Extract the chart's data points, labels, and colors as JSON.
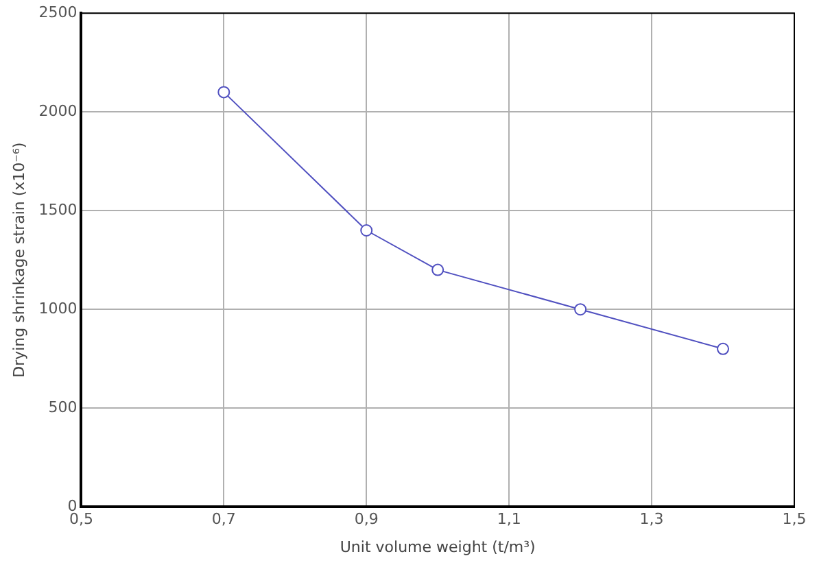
{
  "chart_data": {
    "type": "line",
    "xlabel": "Unit volume weight (t/m³)",
    "ylabel": "Drying shrinkage strain (x10⁻⁶)",
    "x": [
      0.7,
      0.9,
      1.0,
      1.2,
      1.4
    ],
    "series": [
      {
        "color": "#5050c0",
        "values": [
          2100,
          1400,
          1200,
          1000,
          800
        ]
      }
    ],
    "xlim": [
      0.5,
      1.5
    ],
    "xticks": [
      {
        "value": 0.5,
        "label": "0,5"
      },
      {
        "value": 0.7,
        "label": "0,7"
      },
      {
        "value": 0.9,
        "label": "0,9"
      },
      {
        "value": 1.1,
        "label": "1,1"
      },
      {
        "value": 1.3,
        "label": "1,3"
      },
      {
        "value": 1.5,
        "label": "1,5"
      }
    ],
    "ylim": [
      0,
      2500
    ],
    "yticks": [
      0,
      500,
      1000,
      1500,
      2000,
      2500
    ],
    "grid": true,
    "legend": false,
    "marker": "circle",
    "line_style": "solid"
  }
}
